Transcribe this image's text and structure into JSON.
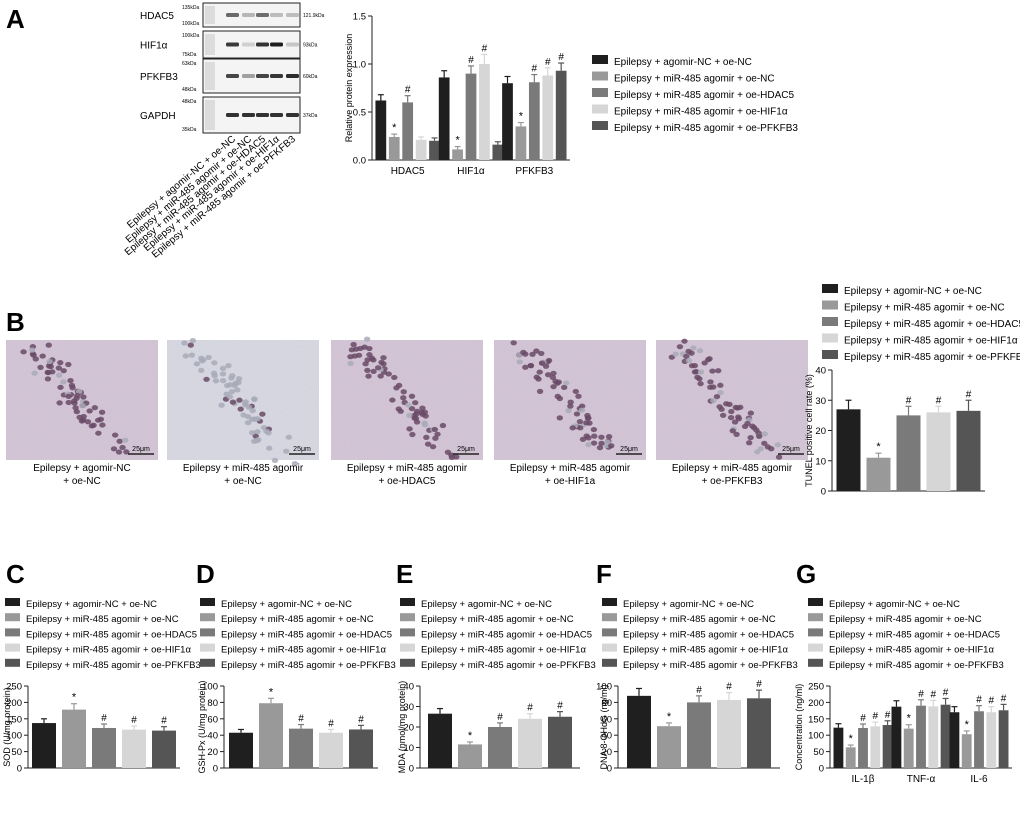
{
  "colors": [
    "#1f1f1f",
    "#999999",
    "#7a7a7a",
    "#d6d6d6",
    "#555555"
  ],
  "series_names": [
    "Epilepsy + agomir-NC + oe-NC",
    "Epilepsy + miR-485 agomir + oe-NC",
    "Epilepsy + miR-485 agomir + oe-HDAC5",
    "Epilepsy + miR-485 agomir + oe-HIF1α",
    "Epilepsy + miR-485 agomir + oe-PFKFB3"
  ],
  "panels": {
    "A": "A",
    "B": "B",
    "C": "C",
    "D": "D",
    "E": "E",
    "F": "F",
    "G": "G"
  },
  "blot": {
    "rows": [
      "HDAC5",
      "HIF1α",
      "PFKFB3",
      "GAPDH"
    ],
    "left_markers": [
      [
        "135kDa",
        "100kDa"
      ],
      [
        "100kDa",
        "75kDa"
      ],
      [
        "63kDa",
        "48kDa"
      ],
      [
        "48kDa",
        "35kDa"
      ]
    ],
    "right_markers": [
      "121.9kDa",
      "93kDa",
      "60kDa",
      "37kDa"
    ],
    "lane_labels": [
      "Epilepsy + agomir-NC + oe-NC",
      "Epilepsy + miR-485 agomir + oe-NC",
      "Epilepsy + miR-485 agomir + oe-HDAC5",
      "Epilepsy + miR-485 agomir + oe-HIF1α",
      "Epilepsy + miR-485 agomir + oe-PFKFB3"
    ]
  },
  "micro": {
    "scale": "25μm",
    "captions": [
      [
        "Epilepsy + agomir-NC",
        "+ oe-NC"
      ],
      [
        "Epilepsy + miR-485 agomir",
        "+ oe-NC"
      ],
      [
        "Epilepsy + miR-485 agomir",
        "+ oe-HDAC5"
      ],
      [
        "Epilepsy + miR-485 agomir",
        "+ oe-HIF1a"
      ],
      [
        "Epilepsy + miR-485 agomir",
        "+ oe-PFKFB3"
      ]
    ]
  },
  "chart_data": [
    {
      "id": "A",
      "type": "bar",
      "categories": [
        "HDAC5",
        "HIF1α",
        "PFKFB3"
      ],
      "ylabel": "Relative protein expression",
      "ylim": [
        0,
        1.5
      ],
      "yticks": [
        "0.0",
        "0.5",
        "1.0",
        "1.5"
      ],
      "series": [
        {
          "name": "Epilepsy + agomir-NC + oe-NC",
          "values": [
            0.62,
            0.86,
            0.8
          ],
          "errors": [
            0.06,
            0.07,
            0.07
          ],
          "marks": [
            "",
            "",
            ""
          ]
        },
        {
          "name": "Epilepsy + miR-485 agomir + oe-NC",
          "values": [
            0.24,
            0.11,
            0.35
          ],
          "errors": [
            0.03,
            0.03,
            0.04
          ],
          "marks": [
            "*",
            "*",
            "*"
          ]
        },
        {
          "name": "Epilepsy + miR-485 agomir + oe-HDAC5",
          "values": [
            0.6,
            0.9,
            0.81
          ],
          "errors": [
            0.07,
            0.08,
            0.08
          ],
          "marks": [
            "#",
            "#",
            "#"
          ]
        },
        {
          "name": "Epilepsy + miR-485 agomir + oe-HIF1α",
          "values": [
            0.21,
            1.0,
            0.88
          ],
          "errors": [
            0.03,
            0.1,
            0.08
          ],
          "marks": [
            "",
            "#",
            "#"
          ]
        },
        {
          "name": "Epilepsy + miR-485 agomir + oe-PFKFB3",
          "values": [
            0.2,
            0.16,
            0.93
          ],
          "errors": [
            0.03,
            0.03,
            0.08
          ],
          "marks": [
            "",
            "",
            "#"
          ]
        }
      ]
    },
    {
      "id": "B",
      "type": "bar",
      "categories": [
        ""
      ],
      "ylabel": "TUNEL positive cell rate (%)",
      "ylim": [
        0,
        40
      ],
      "yticks": [
        "0",
        "10",
        "20",
        "30",
        "40"
      ],
      "series": [
        {
          "name": "Epilepsy + agomir-NC + oe-NC",
          "values": [
            27
          ],
          "errors": [
            3
          ],
          "marks": [
            ""
          ]
        },
        {
          "name": "Epilepsy + miR-485 agomir + oe-NC",
          "values": [
            11
          ],
          "errors": [
            1.5
          ],
          "marks": [
            "*"
          ]
        },
        {
          "name": "Epilepsy + miR-485 agomir + oe-HDAC5",
          "values": [
            25
          ],
          "errors": [
            3
          ],
          "marks": [
            "#"
          ]
        },
        {
          "name": "Epilepsy + miR-485 agomir + oe-HIF1α",
          "values": [
            26
          ],
          "errors": [
            2
          ],
          "marks": [
            "#"
          ]
        },
        {
          "name": "Epilepsy + miR-485 agomir + oe-PFKFB3",
          "values": [
            26.5
          ],
          "errors": [
            3.5
          ],
          "marks": [
            "#"
          ]
        }
      ]
    },
    {
      "id": "C",
      "type": "bar",
      "categories": [
        ""
      ],
      "ylabel": "SOD (U/mg protein)",
      "ylim": [
        0,
        250
      ],
      "yticks": [
        "0",
        "50",
        "100",
        "150",
        "200",
        "250"
      ],
      "series": [
        {
          "name": "Epilepsy + agomir-NC + oe-NC",
          "values": [
            137
          ],
          "errors": [
            13
          ],
          "marks": [
            ""
          ]
        },
        {
          "name": "Epilepsy + miR-485 agomir + oe-NC",
          "values": [
            178
          ],
          "errors": [
            18
          ],
          "marks": [
            "*"
          ]
        },
        {
          "name": "Epilepsy + miR-485 agomir + oe-HDAC5",
          "values": [
            122
          ],
          "errors": [
            12
          ],
          "marks": [
            "#"
          ]
        },
        {
          "name": "Epilepsy + miR-485 agomir + oe-HIF1α",
          "values": [
            117
          ],
          "errors": [
            11
          ],
          "marks": [
            "#"
          ]
        },
        {
          "name": "Epilepsy + miR-485 agomir + oe-PFKFB3",
          "values": [
            114
          ],
          "errors": [
            12
          ],
          "marks": [
            "#"
          ]
        }
      ]
    },
    {
      "id": "D",
      "type": "bar",
      "categories": [
        ""
      ],
      "ylabel": "GSH-Px (U/mg protein)",
      "ylim": [
        0,
        100
      ],
      "yticks": [
        "0",
        "20",
        "40",
        "60",
        "80",
        "100"
      ],
      "series": [
        {
          "name": "Epilepsy + agomir-NC + oe-NC",
          "values": [
            43
          ],
          "errors": [
            4
          ],
          "marks": [
            ""
          ]
        },
        {
          "name": "Epilepsy + miR-485 agomir + oe-NC",
          "values": [
            79
          ],
          "errors": [
            6
          ],
          "marks": [
            "*"
          ]
        },
        {
          "name": "Epilepsy + miR-485 agomir + oe-HDAC5",
          "values": [
            48
          ],
          "errors": [
            5
          ],
          "marks": [
            "#"
          ]
        },
        {
          "name": "Epilepsy + miR-485 agomir + oe-HIF1α",
          "values": [
            43
          ],
          "errors": [
            4
          ],
          "marks": [
            "#"
          ]
        },
        {
          "name": "Epilepsy + miR-485 agomir + oe-PFKFB3",
          "values": [
            47
          ],
          "errors": [
            5
          ],
          "marks": [
            "#"
          ]
        }
      ]
    },
    {
      "id": "E",
      "type": "bar",
      "categories": [
        ""
      ],
      "ylabel": "MDA (nmol/mg protein)",
      "ylim": [
        0,
        40
      ],
      "yticks": [
        "0",
        "10",
        "20",
        "30",
        "40"
      ],
      "series": [
        {
          "name": "Epilepsy + agomir-NC + oe-NC",
          "values": [
            26.5
          ],
          "errors": [
            2.5
          ],
          "marks": [
            ""
          ]
        },
        {
          "name": "Epilepsy + miR-485 agomir + oe-NC",
          "values": [
            11.5
          ],
          "errors": [
            1.2
          ],
          "marks": [
            "*"
          ]
        },
        {
          "name": "Epilepsy + miR-485 agomir + oe-HDAC5",
          "values": [
            20
          ],
          "errors": [
            2
          ],
          "marks": [
            "#"
          ]
        },
        {
          "name": "Epilepsy + miR-485 agomir + oe-HIF1α",
          "values": [
            24
          ],
          "errors": [
            2.5
          ],
          "marks": [
            "#"
          ]
        },
        {
          "name": "Epilepsy + miR-485 agomir + oe-PFKFB3",
          "values": [
            25
          ],
          "errors": [
            2.5
          ],
          "marks": [
            "#"
          ]
        }
      ]
    },
    {
      "id": "F",
      "type": "bar",
      "categories": [
        ""
      ],
      "ylabel": "DNA 8-OHdG (ng/ml)",
      "ylim": [
        0,
        100
      ],
      "yticks": [
        "0",
        "20",
        "40",
        "60",
        "80",
        "100"
      ],
      "series": [
        {
          "name": "Epilepsy + agomir-NC + oe-NC",
          "values": [
            88
          ],
          "errors": [
            9
          ],
          "marks": [
            ""
          ]
        },
        {
          "name": "Epilepsy + miR-485 agomir + oe-NC",
          "values": [
            51
          ],
          "errors": [
            4
          ],
          "marks": [
            "*"
          ]
        },
        {
          "name": "Epilepsy + miR-485 agomir + oe-HDAC5",
          "values": [
            80
          ],
          "errors": [
            8
          ],
          "marks": [
            "#"
          ]
        },
        {
          "name": "Epilepsy + miR-485 agomir + oe-HIF1α",
          "values": [
            83
          ],
          "errors": [
            9
          ],
          "marks": [
            "#"
          ]
        },
        {
          "name": "Epilepsy + miR-485 agomir + oe-PFKFB3",
          "values": [
            85
          ],
          "errors": [
            10
          ],
          "marks": [
            "#"
          ]
        }
      ]
    },
    {
      "id": "G",
      "type": "bar",
      "categories": [
        "IL-1β",
        "TNF-α",
        "IL-6"
      ],
      "ylabel": "Concentration (ng/ml)",
      "ylim": [
        0,
        250
      ],
      "yticks": [
        "0",
        "50",
        "100",
        "150",
        "200",
        "250"
      ],
      "series": [
        {
          "name": "Epilepsy + agomir-NC + oe-NC",
          "values": [
            123,
            187,
            170
          ],
          "errors": [
            12,
            18,
            17
          ],
          "marks": [
            "",
            "",
            ""
          ]
        },
        {
          "name": "Epilepsy + miR-485 agomir + oe-NC",
          "values": [
            63,
            120,
            103
          ],
          "errors": [
            7,
            12,
            10
          ],
          "marks": [
            "*",
            "*",
            "*"
          ]
        },
        {
          "name": "Epilepsy + miR-485 agomir + oe-HDAC5",
          "values": [
            122,
            190,
            173
          ],
          "errors": [
            12,
            18,
            17
          ],
          "marks": [
            "#",
            "#",
            "#"
          ]
        },
        {
          "name": "Epilepsy + miR-485 agomir + oe-HIF1α",
          "values": [
            127,
            188,
            170
          ],
          "errors": [
            13,
            18,
            17
          ],
          "marks": [
            "#",
            "#",
            "#"
          ]
        },
        {
          "name": "Epilepsy + miR-485 agomir + oe-PFKFB3",
          "values": [
            131,
            193,
            176
          ],
          "errors": [
            13,
            19,
            18
          ],
          "marks": [
            "#",
            "#",
            "#"
          ]
        }
      ]
    }
  ]
}
